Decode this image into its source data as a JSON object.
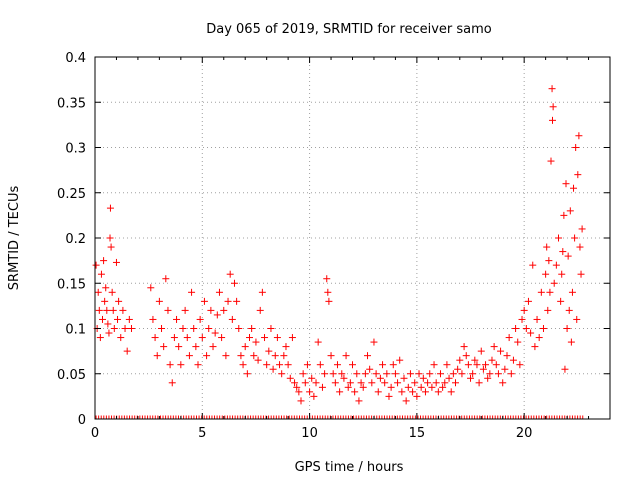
{
  "chart_data": {
    "type": "scatter",
    "title": "Day 065 of 2019, SRMTID for receiver samo",
    "xlabel": "GPS time / hours",
    "ylabel": "SRMTID / TECUs",
    "xlim": [
      0,
      24
    ],
    "ylim": [
      0,
      0.4
    ],
    "grid": true,
    "marker": "+",
    "color": "#ff0000",
    "x_ticks": [
      "0",
      "5",
      "10",
      "15",
      "20"
    ],
    "x_tick_values": [
      0,
      5,
      10,
      15,
      20
    ],
    "y_ticks": [
      "0",
      "0.05",
      "0.1",
      "0.15",
      "0.2",
      "0.25",
      "0.3",
      "0.35",
      "0.4"
    ],
    "y_tick_values": [
      0,
      0.05,
      0.1,
      0.15,
      0.2,
      0.25,
      0.3,
      0.35,
      0.4
    ],
    "series": [
      {
        "name": "SRMTID",
        "points": [
          [
            0.05,
            0.17
          ],
          [
            0.1,
            0.1
          ],
          [
            0.15,
            0.14
          ],
          [
            0.2,
            0.12
          ],
          [
            0.25,
            0.09
          ],
          [
            0.3,
            0.16
          ],
          [
            0.35,
            0.11
          ],
          [
            0.4,
            0.175
          ],
          [
            0.45,
            0.13
          ],
          [
            0.5,
            0.145
          ],
          [
            0.55,
            0.12
          ],
          [
            0.6,
            0.105
          ],
          [
            0.65,
            0.095
          ],
          [
            0.7,
            0.2
          ],
          [
            0.72,
            0.233
          ],
          [
            0.75,
            0.19
          ],
          [
            0.8,
            0.14
          ],
          [
            0.85,
            0.12
          ],
          [
            0.9,
            0.1
          ],
          [
            1.0,
            0.173
          ],
          [
            1.05,
            0.11
          ],
          [
            1.1,
            0.13
          ],
          [
            1.2,
            0.09
          ],
          [
            1.3,
            0.12
          ],
          [
            1.4,
            0.1
          ],
          [
            1.5,
            0.075
          ],
          [
            1.6,
            0.11
          ],
          [
            1.7,
            0.1
          ],
          [
            2.6,
            0.145
          ],
          [
            2.7,
            0.11
          ],
          [
            2.8,
            0.09
          ],
          [
            2.9,
            0.07
          ],
          [
            3.0,
            0.13
          ],
          [
            3.1,
            0.1
          ],
          [
            3.2,
            0.08
          ],
          [
            3.3,
            0.155
          ],
          [
            3.4,
            0.12
          ],
          [
            3.5,
            0.06
          ],
          [
            3.6,
            0.04
          ],
          [
            3.7,
            0.09
          ],
          [
            3.8,
            0.11
          ],
          [
            3.9,
            0.08
          ],
          [
            4.0,
            0.06
          ],
          [
            4.1,
            0.1
          ],
          [
            4.2,
            0.12
          ],
          [
            4.3,
            0.09
          ],
          [
            4.4,
            0.07
          ],
          [
            4.5,
            0.14
          ],
          [
            4.6,
            0.1
          ],
          [
            4.7,
            0.08
          ],
          [
            4.8,
            0.06
          ],
          [
            4.9,
            0.11
          ],
          [
            5.0,
            0.09
          ],
          [
            5.1,
            0.13
          ],
          [
            5.2,
            0.07
          ],
          [
            5.3,
            0.1
          ],
          [
            5.4,
            0.12
          ],
          [
            5.5,
            0.08
          ],
          [
            5.6,
            0.095
          ],
          [
            5.7,
            0.115
          ],
          [
            5.8,
            0.14
          ],
          [
            5.9,
            0.09
          ],
          [
            6.0,
            0.12
          ],
          [
            6.1,
            0.07
          ],
          [
            6.2,
            0.13
          ],
          [
            6.3,
            0.16
          ],
          [
            6.4,
            0.11
          ],
          [
            6.5,
            0.15
          ],
          [
            6.6,
            0.13
          ],
          [
            6.7,
            0.1
          ],
          [
            6.8,
            0.07
          ],
          [
            6.9,
            0.06
          ],
          [
            7.0,
            0.08
          ],
          [
            7.1,
            0.05
          ],
          [
            7.2,
            0.09
          ],
          [
            7.3,
            0.1
          ],
          [
            7.4,
            0.07
          ],
          [
            7.5,
            0.085
          ],
          [
            7.6,
            0.065
          ],
          [
            7.7,
            0.12
          ],
          [
            7.8,
            0.14
          ],
          [
            7.9,
            0.09
          ],
          [
            8.0,
            0.06
          ],
          [
            8.1,
            0.075
          ],
          [
            8.2,
            0.1
          ],
          [
            8.3,
            0.055
          ],
          [
            8.4,
            0.07
          ],
          [
            8.5,
            0.09
          ],
          [
            8.6,
            0.06
          ],
          [
            8.7,
            0.05
          ],
          [
            8.8,
            0.07
          ],
          [
            8.9,
            0.08
          ],
          [
            9.0,
            0.06
          ],
          [
            9.1,
            0.045
          ],
          [
            9.2,
            0.09
          ],
          [
            9.3,
            0.04
          ],
          [
            9.4,
            0.035
          ],
          [
            9.5,
            0.03
          ],
          [
            9.6,
            0.02
          ],
          [
            9.7,
            0.05
          ],
          [
            9.8,
            0.04
          ],
          [
            9.9,
            0.06
          ],
          [
            10.0,
            0.03
          ],
          [
            10.1,
            0.045
          ],
          [
            10.2,
            0.025
          ],
          [
            10.3,
            0.04
          ],
          [
            10.4,
            0.085
          ],
          [
            10.5,
            0.06
          ],
          [
            10.6,
            0.035
          ],
          [
            10.7,
            0.05
          ],
          [
            10.8,
            0.155
          ],
          [
            10.85,
            0.14
          ],
          [
            10.9,
            0.13
          ],
          [
            11.0,
            0.07
          ],
          [
            11.1,
            0.05
          ],
          [
            11.2,
            0.04
          ],
          [
            11.3,
            0.06
          ],
          [
            11.4,
            0.03
          ],
          [
            11.5,
            0.05
          ],
          [
            11.6,
            0.045
          ],
          [
            11.7,
            0.07
          ],
          [
            11.8,
            0.035
          ],
          [
            11.9,
            0.04
          ],
          [
            12.0,
            0.06
          ],
          [
            12.1,
            0.03
          ],
          [
            12.2,
            0.05
          ],
          [
            12.3,
            0.02
          ],
          [
            12.4,
            0.04
          ],
          [
            12.5,
            0.035
          ],
          [
            12.6,
            0.05
          ],
          [
            12.7,
            0.07
          ],
          [
            12.8,
            0.055
          ],
          [
            12.9,
            0.04
          ],
          [
            13.0,
            0.085
          ],
          [
            13.1,
            0.05
          ],
          [
            13.2,
            0.03
          ],
          [
            13.3,
            0.045
          ],
          [
            13.4,
            0.06
          ],
          [
            13.5,
            0.04
          ],
          [
            13.6,
            0.05
          ],
          [
            13.7,
            0.025
          ],
          [
            13.8,
            0.035
          ],
          [
            13.9,
            0.06
          ],
          [
            14.0,
            0.05
          ],
          [
            14.1,
            0.04
          ],
          [
            14.2,
            0.065
          ],
          [
            14.3,
            0.03
          ],
          [
            14.4,
            0.045
          ],
          [
            14.5,
            0.02
          ],
          [
            14.6,
            0.035
          ],
          [
            14.7,
            0.05
          ],
          [
            14.8,
            0.03
          ],
          [
            14.9,
            0.04
          ],
          [
            15.0,
            0.025
          ],
          [
            15.1,
            0.05
          ],
          [
            15.2,
            0.035
          ],
          [
            15.3,
            0.045
          ],
          [
            15.4,
            0.03
          ],
          [
            15.5,
            0.04
          ],
          [
            15.6,
            0.05
          ],
          [
            15.7,
            0.035
          ],
          [
            15.8,
            0.06
          ],
          [
            15.9,
            0.04
          ],
          [
            16.0,
            0.03
          ],
          [
            16.1,
            0.05
          ],
          [
            16.2,
            0.035
          ],
          [
            16.3,
            0.04
          ],
          [
            16.4,
            0.06
          ],
          [
            16.5,
            0.045
          ],
          [
            16.6,
            0.03
          ],
          [
            16.7,
            0.05
          ],
          [
            16.8,
            0.04
          ],
          [
            16.9,
            0.055
          ],
          [
            17.0,
            0.065
          ],
          [
            17.1,
            0.05
          ],
          [
            17.2,
            0.08
          ],
          [
            17.3,
            0.07
          ],
          [
            17.4,
            0.06
          ],
          [
            17.5,
            0.045
          ],
          [
            17.6,
            0.05
          ],
          [
            17.7,
            0.065
          ],
          [
            17.8,
            0.06
          ],
          [
            17.9,
            0.04
          ],
          [
            18.0,
            0.075
          ],
          [
            18.1,
            0.055
          ],
          [
            18.2,
            0.06
          ],
          [
            18.3,
            0.045
          ],
          [
            18.4,
            0.05
          ],
          [
            18.5,
            0.065
          ],
          [
            18.6,
            0.08
          ],
          [
            18.7,
            0.06
          ],
          [
            18.8,
            0.05
          ],
          [
            18.9,
            0.075
          ],
          [
            19.0,
            0.04
          ],
          [
            19.1,
            0.055
          ],
          [
            19.2,
            0.07
          ],
          [
            19.3,
            0.09
          ],
          [
            19.4,
            0.05
          ],
          [
            19.5,
            0.065
          ],
          [
            19.6,
            0.1
          ],
          [
            19.7,
            0.085
          ],
          [
            19.8,
            0.06
          ],
          [
            19.9,
            0.11
          ],
          [
            20.0,
            0.12
          ],
          [
            20.1,
            0.1
          ],
          [
            20.2,
            0.13
          ],
          [
            20.3,
            0.095
          ],
          [
            20.4,
            0.17
          ],
          [
            20.5,
            0.08
          ],
          [
            20.6,
            0.11
          ],
          [
            20.7,
            0.09
          ],
          [
            20.8,
            0.14
          ],
          [
            20.9,
            0.1
          ],
          [
            21.0,
            0.16
          ],
          [
            21.05,
            0.19
          ],
          [
            21.1,
            0.12
          ],
          [
            21.15,
            0.175
          ],
          [
            21.2,
            0.14
          ],
          [
            21.25,
            0.285
          ],
          [
            21.3,
            0.365
          ],
          [
            21.32,
            0.33
          ],
          [
            21.35,
            0.345
          ],
          [
            21.4,
            0.15
          ],
          [
            21.5,
            0.17
          ],
          [
            21.6,
            0.2
          ],
          [
            21.7,
            0.13
          ],
          [
            21.75,
            0.16
          ],
          [
            21.8,
            0.185
          ],
          [
            21.85,
            0.225
          ],
          [
            21.9,
            0.055
          ],
          [
            21.95,
            0.26
          ],
          [
            22.0,
            0.1
          ],
          [
            22.05,
            0.18
          ],
          [
            22.1,
            0.12
          ],
          [
            22.15,
            0.23
          ],
          [
            22.2,
            0.085
          ],
          [
            22.25,
            0.14
          ],
          [
            22.3,
            0.255
          ],
          [
            22.35,
            0.2
          ],
          [
            22.4,
            0.3
          ],
          [
            22.45,
            0.11
          ],
          [
            22.5,
            0.27
          ],
          [
            22.55,
            0.313
          ],
          [
            22.6,
            0.19
          ],
          [
            22.65,
            0.16
          ],
          [
            22.7,
            0.21
          ]
        ]
      }
    ]
  }
}
